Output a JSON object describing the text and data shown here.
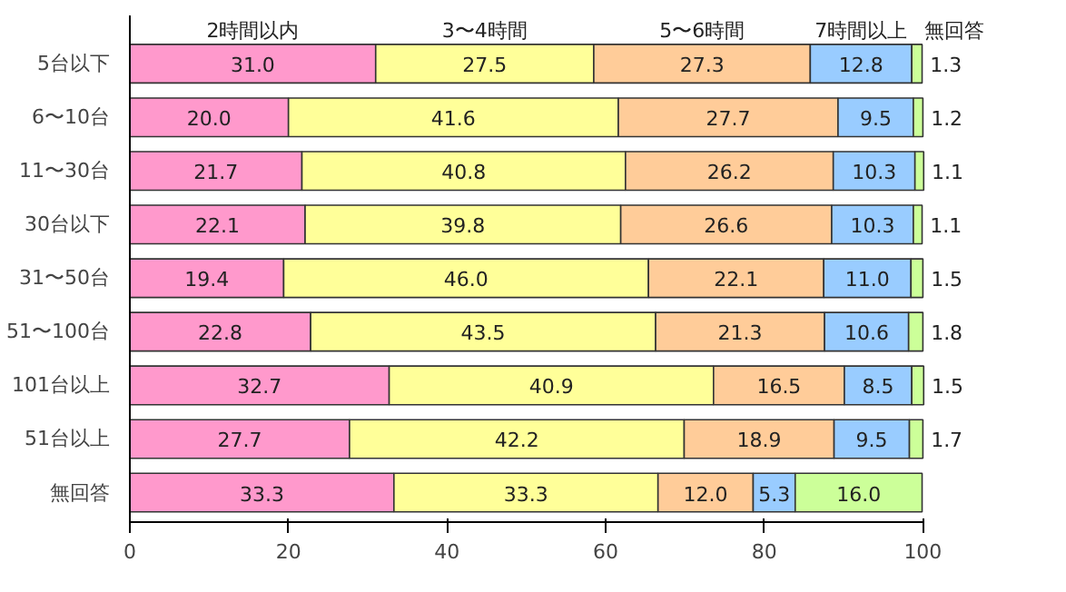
{
  "chart_data": {
    "type": "bar",
    "orientation": "horizontal",
    "stacked": true,
    "categories": [
      "5台以下",
      "6〜10台",
      "11〜30台",
      "30台以下",
      "31〜50台",
      "51〜100台",
      "101台以上",
      "51台以上",
      "無回答"
    ],
    "series": [
      {
        "name": "2時間以内",
        "color": "#ff99cc",
        "values": [
          31.0,
          20.0,
          21.7,
          22.1,
          19.4,
          22.8,
          32.7,
          27.7,
          33.3
        ],
        "value_labels": [
          "31.0",
          "20.0",
          "21.7",
          "22.1",
          "19.4",
          "22.8",
          "32.7",
          "27.7",
          "33.3"
        ]
      },
      {
        "name": "3〜4時間",
        "color": "#ffff99",
        "values": [
          27.5,
          41.6,
          40.8,
          39.8,
          46.0,
          43.5,
          40.9,
          42.2,
          33.3
        ],
        "value_labels": [
          "27.5",
          "41.6",
          "40.8",
          "39.8",
          "46.0",
          "43.5",
          "40.9",
          "42.2",
          "33.3"
        ]
      },
      {
        "name": "5〜6時間",
        "color": "#ffcc99",
        "values": [
          27.3,
          27.7,
          26.2,
          26.6,
          22.1,
          21.3,
          16.5,
          18.9,
          12.0
        ],
        "value_labels": [
          "27.3",
          "27.7",
          "26.2",
          "26.6",
          "22.1",
          "21.3",
          "16.5",
          "18.9",
          "12.0"
        ]
      },
      {
        "name": "7時間以上",
        "color": "#99ccff",
        "values": [
          12.8,
          9.5,
          10.3,
          10.3,
          11.0,
          10.6,
          8.5,
          9.5,
          5.3
        ],
        "value_labels": [
          "12.8",
          "9.5",
          "10.3",
          "10.3",
          "11.0",
          "10.6",
          "8.5",
          "9.5",
          "5.3"
        ]
      },
      {
        "name": "無回答",
        "color": "#ccff99",
        "values": [
          1.3,
          1.2,
          1.1,
          1.1,
          1.5,
          1.8,
          1.5,
          1.7,
          16.0
        ],
        "value_labels": [
          "1.3",
          "1.2",
          "1.1",
          "1.1",
          "1.5",
          "1.8",
          "1.5",
          "1.7",
          "16.0"
        ]
      }
    ],
    "xlim": [
      0,
      100
    ],
    "xticks": [
      0,
      20,
      40,
      60,
      80,
      100
    ],
    "grid": false,
    "legend": "top",
    "data_labels": true
  }
}
